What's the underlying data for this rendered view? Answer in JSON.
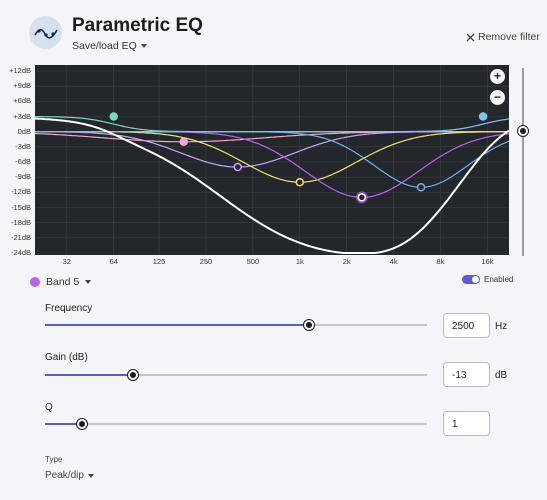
{
  "header": {
    "title": "Parametric EQ",
    "save_load_label": "Save/load EQ",
    "remove_filter_label": "Remove filter"
  },
  "chart": {
    "y_ticks": [
      "+12dB",
      "+9dB",
      "+6dB",
      "+3dB",
      "0dB",
      "-3dB",
      "-6dB",
      "-9dB",
      "-12dB",
      "-15dB",
      "-18dB",
      "-21dB",
      "-24dB"
    ],
    "x_ticks": [
      "32",
      "64",
      "125",
      "250",
      "500",
      "1k",
      "2k",
      "4k",
      "8k",
      "16k"
    ],
    "zoom_in_label": "+",
    "zoom_out_label": "−"
  },
  "chart_data": {
    "type": "line",
    "x_scale": "log",
    "xlim": [
      20,
      22000
    ],
    "ylim": [
      -24,
      12
    ],
    "x_tick_values": [
      32,
      64,
      125,
      250,
      500,
      1000,
      2000,
      4000,
      8000,
      16000
    ],
    "bands": [
      {
        "type": "low-shelf",
        "freq": 64,
        "gain": 3,
        "q": 0.7,
        "color": "#7ad6c9"
      },
      {
        "type": "peak",
        "freq": 180,
        "gain": -2,
        "q": 0.7,
        "color": "#f4a8c8"
      },
      {
        "type": "peak",
        "freq": 400,
        "gain": -7,
        "q": 1,
        "color": "#c7a6f5"
      },
      {
        "type": "peak",
        "freq": 1000,
        "gain": -10,
        "q": 1,
        "color": "#f0e36a"
      },
      {
        "type": "peak",
        "freq": 2500,
        "gain": -13,
        "q": 1,
        "color": "#b964ee"
      },
      {
        "type": "peak",
        "freq": 6000,
        "gain": -11,
        "q": 1.2,
        "color": "#6fb0ea"
      },
      {
        "type": "high-shelf",
        "freq": 15000,
        "gain": 3,
        "q": 0.7,
        "color": "#7ec3f0"
      }
    ],
    "combined_color": "#ffffff"
  },
  "gain_scale": {
    "value_db": 0
  },
  "band": {
    "label": "Band 5",
    "color": "#b964ee",
    "enabled_label": "Enabled",
    "enabled": true
  },
  "params": {
    "frequency": {
      "label": "Frequency",
      "value": "2500",
      "unit": "Hz",
      "fraction": 0.69
    },
    "gain": {
      "label": "Gain (dB)",
      "value": "-13",
      "unit": "dB",
      "fraction": 0.23
    },
    "q": {
      "label": "Q",
      "value": "1",
      "fraction": 0.096
    },
    "type": {
      "label": "Type",
      "value": "Peak/dip"
    }
  }
}
